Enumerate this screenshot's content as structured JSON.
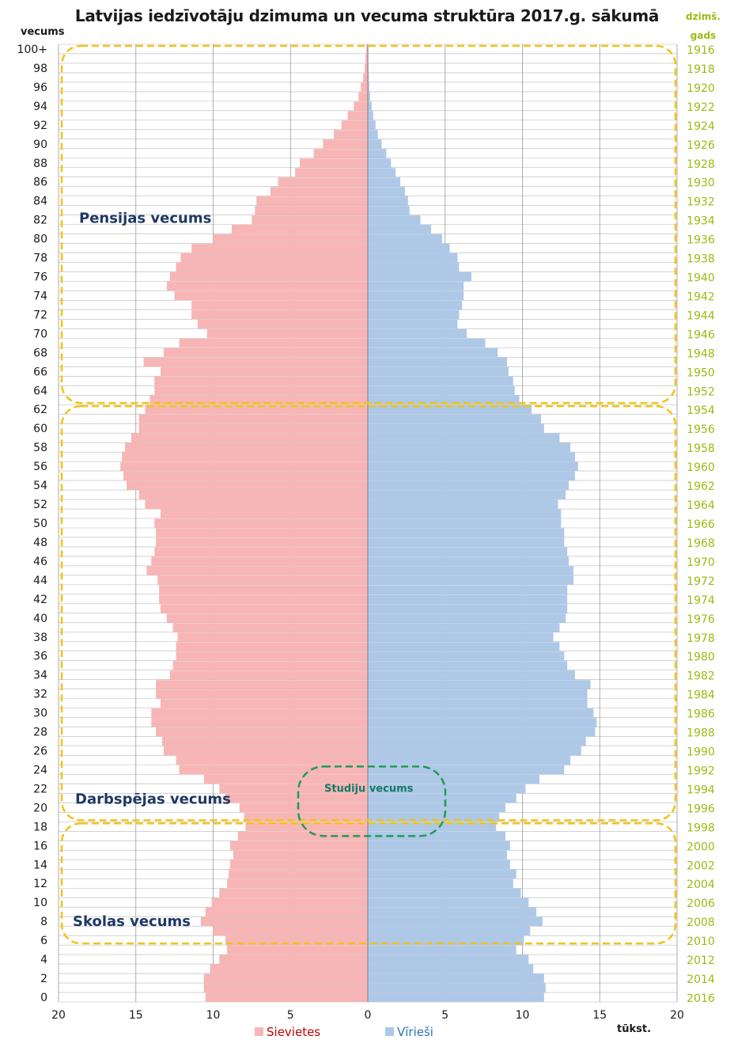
{
  "title": "Latvijas iedzīvotāju dzimuma un vecuma struktūra 2017.g. sākumā",
  "colors": {
    "female": "#f8b5b5",
    "male": "#aec8e8",
    "grid": "#9a9a9a",
    "year_text": "#9abb14",
    "group_box": "#f0c419",
    "study_box": "#1e9c55",
    "group_label": "#1f3864",
    "study_label": "#117a65",
    "legend_female_text": "#c00000",
    "legend_male_text": "#2e75b6"
  },
  "chart_data": {
    "type": "bar",
    "orientation": "horizontal",
    "subtype": "population-pyramid",
    "title": "Latvijas iedzīvotāju dzimuma un vecuma struktūra 2017.g. sākumā",
    "y_axis_label": "vecums",
    "secondary_y_axis_label": [
      "dzimš.",
      "gads"
    ],
    "x_unit_label": "tūkst.",
    "xlim": [
      -20,
      20
    ],
    "x_ticks": [
      -20,
      -15,
      -10,
      -5,
      0,
      5,
      10,
      15,
      20
    ],
    "x_tick_labels": [
      "20",
      "15",
      "10",
      "5",
      "0",
      "5",
      "10",
      "15",
      "20"
    ],
    "age_tick_labels": [
      "0",
      "2",
      "4",
      "6",
      "8",
      "10",
      "12",
      "14",
      "16",
      "18",
      "20",
      "22",
      "24",
      "26",
      "28",
      "30",
      "32",
      "34",
      "36",
      "38",
      "40",
      "42",
      "44",
      "46",
      "48",
      "50",
      "52",
      "54",
      "56",
      "58",
      "60",
      "62",
      "64",
      "66",
      "68",
      "70",
      "72",
      "74",
      "76",
      "78",
      "80",
      "82",
      "84",
      "86",
      "88",
      "90",
      "92",
      "94",
      "96",
      "98",
      "100+"
    ],
    "birth_year_labels": [
      "2016",
      "2014",
      "2012",
      "2010",
      "2008",
      "2006",
      "2004",
      "2002",
      "2000",
      "1998",
      "1996",
      "1994",
      "1992",
      "1990",
      "1988",
      "1986",
      "1984",
      "1982",
      "1980",
      "1978",
      "1976",
      "1974",
      "1972",
      "1970",
      "1968",
      "1966",
      "1964",
      "1962",
      "1960",
      "1958",
      "1956",
      "1954",
      "1952",
      "1950",
      "1948",
      "1946",
      "1944",
      "1942",
      "1940",
      "1938",
      "1936",
      "1934",
      "1932",
      "1930",
      "1928",
      "1926",
      "1924",
      "1922",
      "1920",
      "1918",
      "1916"
    ],
    "grid": true,
    "legend_position": "bottom",
    "categories": [
      0,
      1,
      2,
      3,
      4,
      5,
      6,
      7,
      8,
      9,
      10,
      11,
      12,
      13,
      14,
      15,
      16,
      17,
      18,
      19,
      20,
      21,
      22,
      23,
      24,
      25,
      26,
      27,
      28,
      29,
      30,
      31,
      32,
      33,
      34,
      35,
      36,
      37,
      38,
      39,
      40,
      41,
      42,
      43,
      44,
      45,
      46,
      47,
      48,
      49,
      50,
      51,
      52,
      53,
      54,
      55,
      56,
      57,
      58,
      59,
      60,
      61,
      62,
      63,
      64,
      65,
      66,
      67,
      68,
      69,
      70,
      71,
      72,
      73,
      74,
      75,
      76,
      77,
      78,
      79,
      80,
      81,
      82,
      83,
      84,
      85,
      86,
      87,
      88,
      89,
      90,
      91,
      92,
      93,
      94,
      95,
      96,
      97,
      98,
      99,
      100
    ],
    "series": [
      {
        "name": "Sievietes",
        "side": "left",
        "values": [
          10.5,
          10.6,
          10.6,
          10.2,
          9.6,
          9.1,
          9.2,
          10.0,
          10.8,
          10.5,
          10.1,
          9.6,
          9.1,
          9.0,
          8.9,
          8.7,
          8.9,
          8.4,
          7.9,
          8.0,
          8.3,
          9.2,
          9.6,
          10.6,
          12.2,
          12.4,
          13.2,
          13.3,
          13.7,
          14.0,
          14.0,
          13.4,
          13.7,
          13.7,
          12.8,
          12.6,
          12.4,
          12.4,
          12.3,
          12.6,
          13.0,
          13.4,
          13.5,
          13.5,
          13.6,
          14.3,
          14.0,
          13.8,
          13.7,
          13.7,
          13.8,
          13.4,
          14.4,
          14.8,
          15.6,
          15.8,
          16.0,
          15.9,
          15.7,
          15.3,
          14.8,
          14.8,
          14.4,
          14.1,
          13.8,
          13.8,
          13.4,
          14.5,
          13.2,
          12.2,
          10.4,
          11.0,
          11.4,
          11.4,
          12.5,
          13.0,
          12.8,
          12.4,
          12.1,
          11.4,
          10.0,
          8.8,
          7.5,
          7.3,
          7.2,
          6.3,
          5.8,
          4.7,
          4.4,
          3.5,
          2.9,
          2.2,
          1.7,
          1.3,
          0.9,
          0.6,
          0.45,
          0.3,
          0.2,
          0.15,
          0.1
        ]
      },
      {
        "name": "Vīrieši",
        "side": "right",
        "values": [
          11.4,
          11.5,
          11.4,
          10.7,
          10.4,
          9.6,
          10.1,
          10.5,
          11.3,
          10.9,
          10.4,
          9.9,
          9.4,
          9.6,
          9.2,
          9.0,
          9.2,
          8.9,
          8.3,
          8.5,
          8.9,
          9.6,
          10.2,
          11.1,
          12.7,
          13.1,
          13.8,
          14.1,
          14.7,
          14.8,
          14.6,
          14.2,
          14.2,
          14.4,
          13.4,
          12.9,
          12.7,
          12.4,
          12.0,
          12.4,
          12.8,
          12.9,
          12.9,
          12.9,
          13.3,
          13.3,
          13.0,
          12.9,
          12.7,
          12.7,
          12.5,
          12.5,
          12.3,
          12.8,
          13.0,
          13.4,
          13.6,
          13.4,
          13.1,
          12.4,
          11.4,
          11.2,
          10.6,
          9.8,
          9.5,
          9.4,
          9.1,
          9.0,
          8.4,
          7.6,
          6.4,
          5.8,
          5.9,
          6.1,
          6.2,
          6.2,
          6.7,
          5.9,
          5.8,
          5.3,
          4.8,
          4.1,
          3.4,
          2.7,
          2.6,
          2.4,
          2.1,
          1.8,
          1.5,
          1.2,
          0.9,
          0.65,
          0.5,
          0.35,
          0.25,
          0.15,
          0.1,
          0.07,
          0.05,
          0.03,
          0.02
        ]
      }
    ],
    "annotations": [
      {
        "text": "Pensijas vecums",
        "age_range": [
          63,
          100
        ]
      },
      {
        "text": "Darbspējas vecums",
        "age_range": [
          19,
          62
        ]
      },
      {
        "text": "Skolas vecums",
        "age_range": [
          6,
          18
        ]
      },
      {
        "text": "Studiju vecums",
        "age_range": [
          19,
          24
        ]
      }
    ]
  }
}
